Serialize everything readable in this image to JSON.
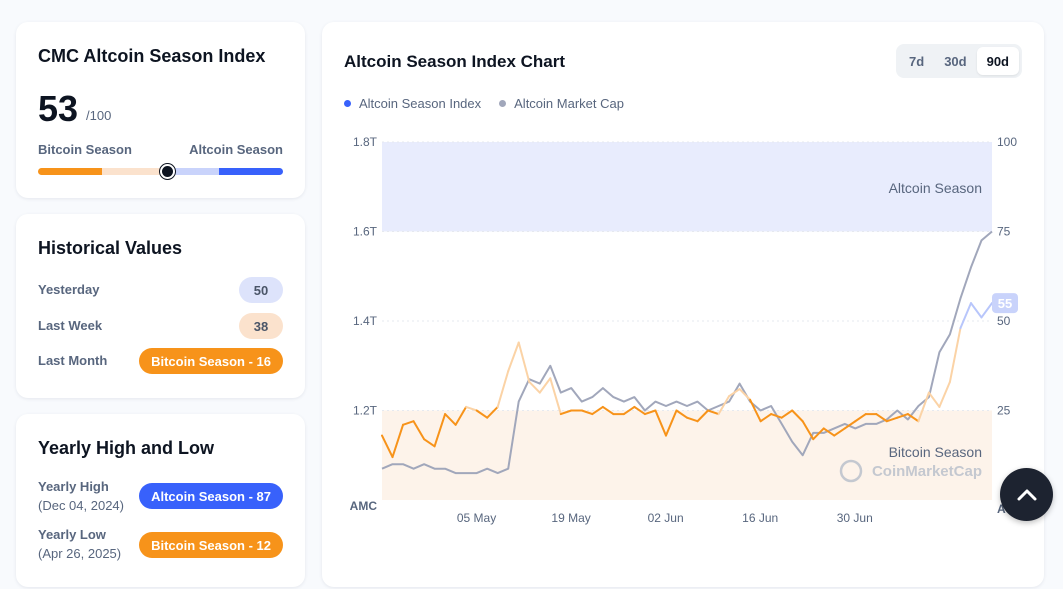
{
  "index_card": {
    "title": "CMC Altcoin Season Index",
    "value": "53",
    "max": "/100",
    "left_label": "Bitcoin Season",
    "right_label": "Altcoin Season",
    "position": 0.53
  },
  "historical": {
    "title": "Historical Values",
    "rows": [
      {
        "label": "Yesterday",
        "value": "50"
      },
      {
        "label": "Last Week",
        "value": "38"
      },
      {
        "label": "Last Month",
        "value": "Bitcoin Season - 16"
      }
    ]
  },
  "yearly": {
    "title": "Yearly High and Low",
    "high_label": "Yearly High",
    "high_date": "(Dec 04, 2024)",
    "high_value": "Altcoin Season - 87",
    "low_label": "Yearly Low",
    "low_date": "(Apr 26, 2025)",
    "low_value": "Bitcoin Season - 12"
  },
  "chart_panel": {
    "title": "Altcoin Season Index Chart",
    "tabs": [
      "7d",
      "30d",
      "90d"
    ],
    "active_tab": "90d",
    "legend": [
      "Altcoin Season Index",
      "Altcoin Market Cap"
    ],
    "altcoin_zone_label": "Altcoin Season",
    "bitcoin_zone_label": "Bitcoin Season",
    "watermark": "CoinMarketCap",
    "current_badge": "55",
    "left_axis_unit": "AMC",
    "right_axis_unit": "ASI"
  },
  "colors": {
    "index_line": "#f7931a",
    "index_line_light": "#fbd3a6",
    "index_line_blue": "#b8c6fb",
    "market_cap_line": "#a1a7bb",
    "legend_index_dot": "#3861fb",
    "altcoin_zone": "#e8ecfd",
    "bitcoin_zone": "#fdf3ea",
    "blue": "#3861fb",
    "orange": "#f7931a"
  },
  "chart_data": {
    "type": "line",
    "title": "Altcoin Season Index Chart",
    "x_ticks": [
      "05 May",
      "19 May",
      "02 Jun",
      "16 Jun",
      "30 Jun"
    ],
    "left_axis": {
      "label": "AMC",
      "ticks": [
        "1.2T",
        "1.4T",
        "1.6T",
        "1.8T"
      ],
      "ylim": [
        1.0,
        1.8
      ]
    },
    "right_axis": {
      "label": "ASI",
      "ticks": [
        "25",
        "50",
        "75",
        "100"
      ],
      "ylim": [
        0,
        100
      ]
    },
    "bands": [
      {
        "name": "Altcoin Season",
        "from": 75,
        "to": 100
      },
      {
        "name": "Bitcoin Season",
        "from": 0,
        "to": 25
      }
    ],
    "series": [
      {
        "name": "Altcoin Season Index",
        "axis": "right",
        "values": [
          18,
          12,
          21,
          22,
          17,
          15,
          24,
          21,
          26,
          25,
          23,
          26,
          36,
          44,
          33,
          30,
          34,
          24,
          25,
          25,
          24,
          26,
          24,
          24,
          26,
          24,
          25,
          18,
          25,
          23,
          22,
          25,
          24,
          29,
          31,
          28,
          22,
          24,
          23,
          25,
          22,
          17,
          20,
          18,
          20,
          22,
          24,
          24,
          22,
          23,
          24,
          22,
          30,
          26,
          33,
          48,
          55,
          51,
          55
        ]
      },
      {
        "name": "Altcoin Market Cap",
        "axis": "left",
        "values": [
          1.07,
          1.08,
          1.08,
          1.07,
          1.08,
          1.07,
          1.07,
          1.06,
          1.06,
          1.06,
          1.07,
          1.06,
          1.07,
          1.22,
          1.27,
          1.26,
          1.3,
          1.24,
          1.25,
          1.22,
          1.23,
          1.25,
          1.23,
          1.22,
          1.23,
          1.2,
          1.22,
          1.21,
          1.22,
          1.21,
          1.22,
          1.2,
          1.21,
          1.22,
          1.26,
          1.22,
          1.2,
          1.21,
          1.17,
          1.13,
          1.1,
          1.15,
          1.15,
          1.16,
          1.17,
          1.16,
          1.17,
          1.17,
          1.18,
          1.2,
          1.18,
          1.21,
          1.23,
          1.33,
          1.37,
          1.45,
          1.52,
          1.58,
          1.6
        ]
      }
    ],
    "current_value": 55,
    "grid": true,
    "legend_position": "top-left"
  }
}
